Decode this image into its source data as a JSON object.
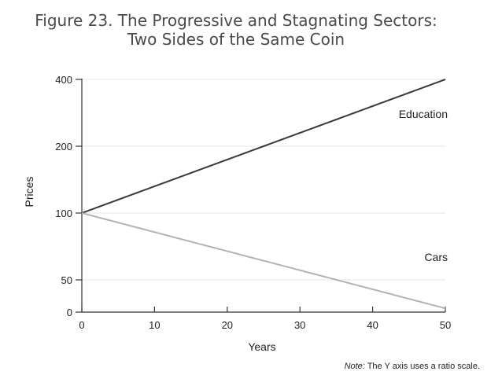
{
  "chart_data": {
    "type": "line",
    "title": "Figure 23. The Progressive and Stagnating Sectors:",
    "subtitle": "Two Sides of the Same Coin",
    "xlabel": "Years",
    "ylabel": "Prices",
    "xlim": [
      0,
      50
    ],
    "ylim": [
      0,
      400
    ],
    "y_scale": "ratio (log)",
    "x_ticks": [
      "0",
      "10",
      "20",
      "30",
      "40",
      "50"
    ],
    "y_ticks": [
      "400",
      "200",
      "100",
      "50",
      "0"
    ],
    "grid": true,
    "series": [
      {
        "name": "Education",
        "color": "#3a3a3a",
        "x": [
          0,
          5,
          10,
          15,
          20,
          25,
          30,
          35,
          40,
          45,
          50
        ],
        "values": [
          100,
          115,
          132,
          152,
          174,
          200,
          230,
          264,
          303,
          348,
          400
        ]
      },
      {
        "name": "Cars",
        "color": "#b3b3b3",
        "x": [
          0,
          5,
          10,
          15,
          20,
          25,
          30,
          35,
          40,
          45,
          50
        ],
        "values": [
          100,
          90.6,
          82.0,
          74.3,
          67.3,
          61.0,
          55.2,
          50.0,
          45.3,
          41.0,
          37.2
        ]
      }
    ]
  },
  "note": {
    "prefix": "Note:",
    "text": " The Y axis uses a ratio scale."
  }
}
